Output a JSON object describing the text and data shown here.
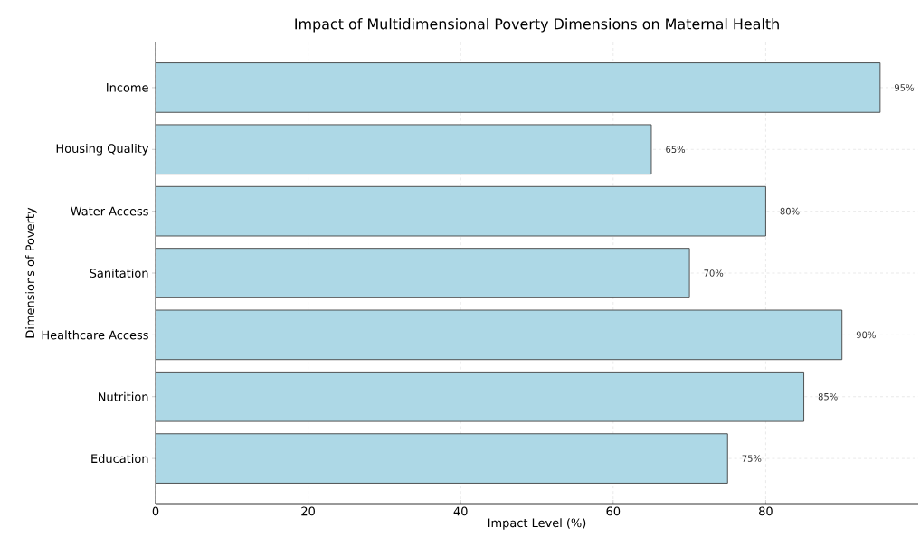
{
  "chart_data": {
    "type": "bar",
    "orientation": "horizontal",
    "title": "Impact of Multidimensional Poverty Dimensions on Maternal Health",
    "xlabel": "Impact Level (%)",
    "ylabel": "Dimensions of Poverty",
    "categories": [
      "Income",
      "Housing Quality",
      "Water Access",
      "Sanitation",
      "Healthcare Access",
      "Nutrition",
      "Education"
    ],
    "values": [
      95,
      65,
      80,
      70,
      90,
      85,
      75
    ],
    "value_labels": [
      "95%",
      "65%",
      "80%",
      "70%",
      "90%",
      "85%",
      "75%"
    ],
    "color": "#add8e6",
    "xlim": [
      0,
      100
    ],
    "xticks": [
      0,
      20,
      40,
      60,
      80
    ],
    "grid": true
  }
}
